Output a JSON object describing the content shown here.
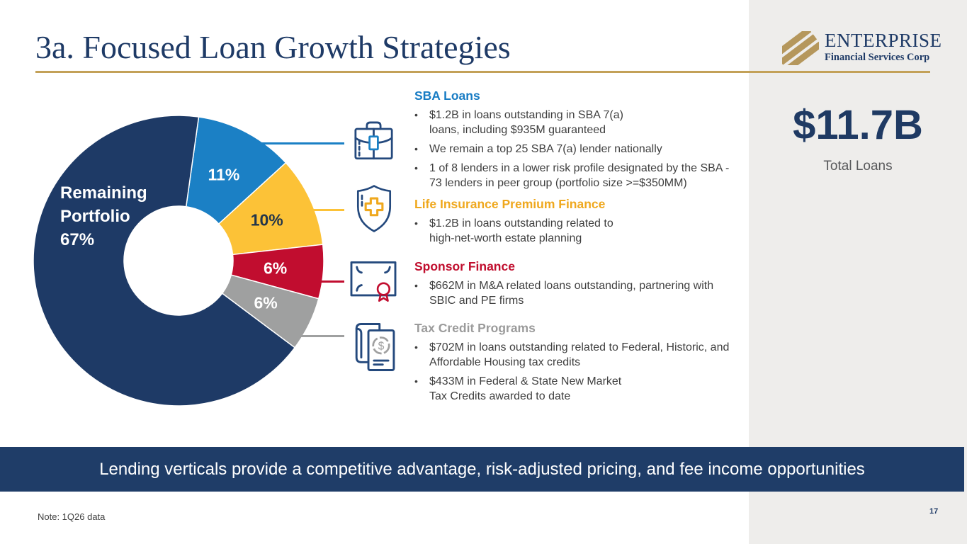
{
  "slide": {
    "title": "3a. Focused Loan Growth Strategies",
    "banner_text": "Lending verticals provide a competitive advantage, risk-adjusted pricing, and fee income opportunities",
    "note": "Note: 1Q26 data",
    "page_number": "17"
  },
  "logo": {
    "name": "ENTERPRISE",
    "subtitle": "Financial Services Corp"
  },
  "summary": {
    "value": "$11.7B",
    "label": "Total Loans"
  },
  "colors": {
    "navy": "#1E3A66",
    "banner_navy": "#1F3D68",
    "panel_gray": "#EEEDEB",
    "gold_rule": "#C3A158",
    "logo_gold": "#B5975C",
    "icon_navy": "#24497D",
    "body_text": "#3F3F3F"
  },
  "chart_data": {
    "type": "pie",
    "title": "Loan portfolio mix (donut)",
    "units": "percent of total loans",
    "start_angle_deg": 8,
    "legend_position": "none",
    "segments": [
      {
        "label": "SBA Loans",
        "value": 11,
        "color": "#1B80C5",
        "pct_label": "11%",
        "pct_color": "#FFFFFF"
      },
      {
        "label": "Life Insurance Premium Finance",
        "value": 10,
        "color": "#FCC237",
        "pct_label": "10%",
        "pct_color": "#22354A"
      },
      {
        "label": "Sponsor Finance",
        "value": 6,
        "color": "#C10D2F",
        "pct_label": "6%",
        "pct_color": "#FFFFFF"
      },
      {
        "label": "Tax Credit Programs",
        "value": 6,
        "color": "#9FA0A0",
        "pct_label": "6%",
        "pct_color": "#FFFFFF"
      },
      {
        "label": "Remaining Portfolio",
        "value": 67,
        "color": "#1E3A66",
        "pct_label": "",
        "pct_color": "#FFFFFF"
      }
    ],
    "center_label": "Remaining\nPortfolio\n67%"
  },
  "verticals": [
    {
      "title": "SBA Loans",
      "title_color": "#187CC4",
      "icon": "briefcase",
      "bullets": [
        "$1.2B in loans outstanding in SBA 7(a)\nloans, including $935M guaranteed",
        "We remain a top 25 SBA 7(a) lender nationally",
        "1 of 8 lenders in a lower risk profile designated by the SBA -\n73 lenders in peer group (portfolio size >=$350MM)"
      ]
    },
    {
      "title": "Life Insurance Premium Finance",
      "title_color": "#EFA81E",
      "icon": "shield-cross",
      "bullets": [
        "$1.2B in loans outstanding related to\nhigh-net-worth estate planning"
      ]
    },
    {
      "title": "Sponsor Finance",
      "title_color": "#C00D2D",
      "icon": "certificate",
      "bullets": [
        "$662M in M&A related loans outstanding, partnering with\nSBIC and PE firms"
      ]
    },
    {
      "title": "Tax Credit Programs",
      "title_color": "#9B9B9B",
      "icon": "tax-documents",
      "bullets": [
        "$702M in loans outstanding related to Federal, Historic, and\nAffordable Housing tax credits",
        "$433M in Federal & State New Market\nTax Credits awarded to date"
      ]
    }
  ]
}
